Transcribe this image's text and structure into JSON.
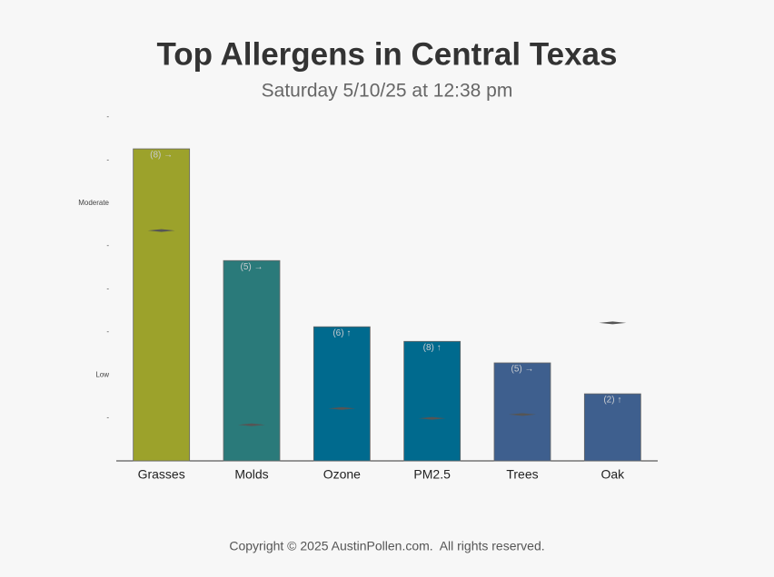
{
  "chart_data": {
    "type": "bar",
    "title": "Top Allergens in Central Texas",
    "subtitle": "Saturday 5/10/25 at 12:38 pm",
    "categories": [
      "Grasses",
      "Molds",
      "Ozone",
      "PM2.5",
      "Trees",
      "Oak"
    ],
    "values": [
      7.26,
      4.66,
      3.12,
      2.78,
      2.28,
      1.56
    ],
    "colors": [
      "#9ca22b",
      "#2a7a7a",
      "#006a8e",
      "#006a8e",
      "#3e5f8e",
      "#3e5f8e"
    ],
    "bar_labels": [
      "(8) →",
      "(5) →",
      "(6) ↑",
      "(8) ↑",
      "(5) →",
      "(2) ↑"
    ],
    "markers": {
      "color": "#555555",
      "values": [
        5.36,
        0.84,
        1.22,
        0.99,
        1.08,
        3.21
      ]
    },
    "ylim": [
      0,
      8
    ],
    "yticks": [
      {
        "value": 1,
        "label": "-"
      },
      {
        "value": 2,
        "label": "Low"
      },
      {
        "value": 3,
        "label": "-"
      },
      {
        "value": 4,
        "label": "-"
      },
      {
        "value": 5,
        "label": "-"
      },
      {
        "value": 6,
        "label": "Moderate"
      },
      {
        "value": 7,
        "label": "-"
      },
      {
        "value": 8,
        "label": "-"
      }
    ],
    "footer": "Copyright © 2025 AustinPollen.com.  All rights reserved."
  }
}
